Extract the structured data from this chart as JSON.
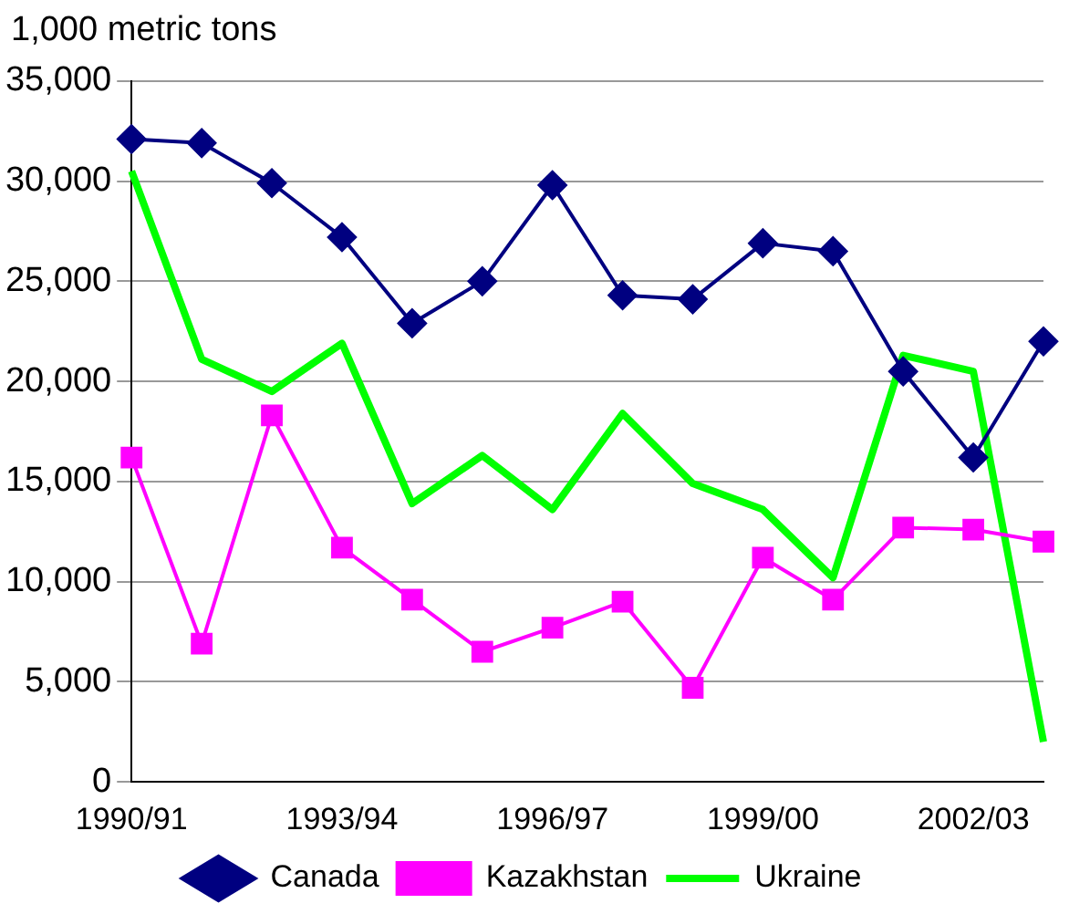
{
  "chart_data": {
    "type": "line",
    "ylabel": "1,000 metric tons",
    "categories": [
      "1990/91",
      null,
      null,
      "1993/94",
      null,
      null,
      "1996/97",
      null,
      null,
      "1999/00",
      null,
      null,
      "2002/03",
      null
    ],
    "series": [
      {
        "name": "Canada",
        "color": "#000080",
        "marker": "diamond",
        "values": [
          32100,
          31900,
          29900,
          27200,
          22900,
          25000,
          29800,
          24300,
          24100,
          26900,
          26500,
          20500,
          16200,
          22000
        ]
      },
      {
        "name": "Kazakhstan",
        "color": "#ff00ff",
        "marker": "square",
        "values": [
          16200,
          6900,
          18300,
          11700,
          9100,
          6500,
          7700,
          9000,
          4700,
          11200,
          9100,
          12700,
          12600,
          12000
        ]
      },
      {
        "name": "Ukraine",
        "color": "#00ff00",
        "marker": "none",
        "values": [
          30500,
          21100,
          19500,
          21900,
          13900,
          16300,
          13600,
          18400,
          14900,
          13600,
          10200,
          21300,
          20500,
          2000
        ]
      }
    ],
    "ylim": [
      0,
      35000
    ],
    "yticks": [
      0,
      {
        "value": 5000,
        "label": "5,000"
      },
      {
        "value": 10000,
        "label": "10,000"
      },
      {
        "value": 15000,
        "label": "15,000"
      },
      {
        "value": 20000,
        "label": "20,000"
      },
      {
        "value": 25000,
        "label": "25,000"
      },
      {
        "value": 30000,
        "label": "30,000"
      },
      {
        "value": 35000,
        "label": "35,000"
      }
    ],
    "grid": "y",
    "legend": "bottom"
  }
}
